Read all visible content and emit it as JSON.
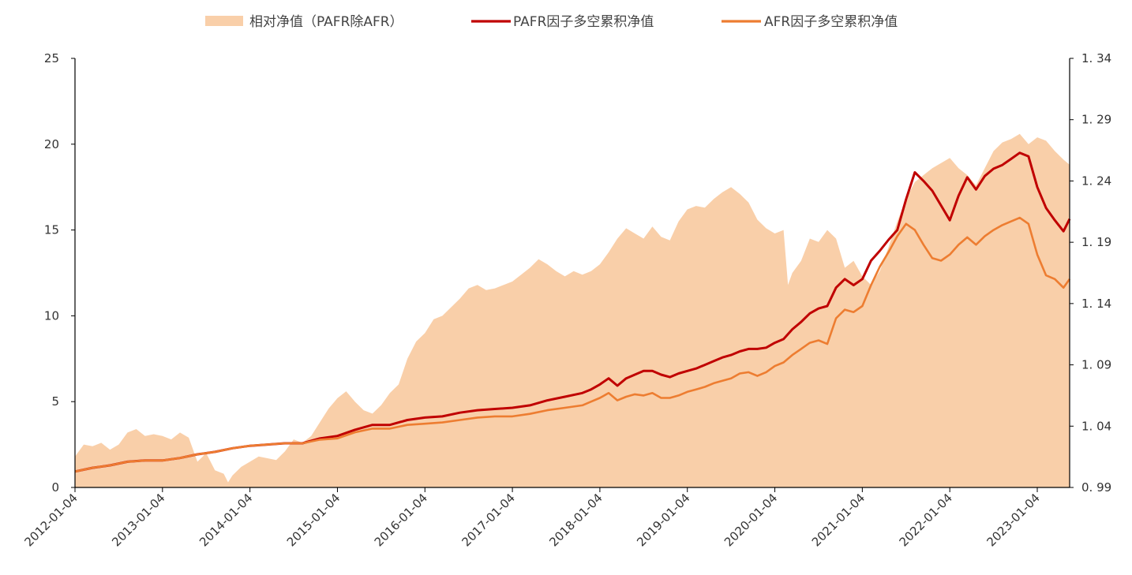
{
  "chart_data": {
    "type": "line",
    "legend_placement": "top-center",
    "grid": false,
    "legend": [
      {
        "key": "relative",
        "label": "相对净值（PAFR除AFR）",
        "style": "area"
      },
      {
        "key": "pafr",
        "label": "PAFR因子多空累积净值",
        "style": "line"
      },
      {
        "key": "afr",
        "label": "AFR因子多空累积净值",
        "style": "line"
      }
    ],
    "colors": {
      "relative": "#f9cfa9",
      "pafr": "#c00000",
      "afr": "#ed7d31",
      "axis": "#000000"
    },
    "x_tick_labels": [
      "2012-01-04",
      "2013-01-04",
      "2014-01-04",
      "2015-01-04",
      "2016-01-04",
      "2017-01-04",
      "2018-01-04",
      "2019-01-04",
      "2020-01-04",
      "2021-01-04",
      "2022-01-04",
      "2023-01-04"
    ],
    "x_range": [
      2012.0,
      2023.37
    ],
    "y_left": {
      "range": [
        0,
        25
      ],
      "ticks": [
        "0",
        "5",
        "10",
        "15",
        "20",
        "25"
      ]
    },
    "y_right": {
      "range": [
        0.99,
        1.34
      ],
      "ticks": [
        "0. 99",
        "1. 04",
        "1. 09",
        "1. 14",
        "1. 19",
        "1. 24",
        "1. 29",
        "1. 34"
      ]
    },
    "series": [
      {
        "key": "relative",
        "axis": "left",
        "x": [
          2012.0,
          2012.1,
          2012.2,
          2012.3,
          2012.4,
          2012.5,
          2012.6,
          2012.7,
          2012.8,
          2012.9,
          2013.0,
          2013.1,
          2013.2,
          2013.3,
          2013.4,
          2013.5,
          2013.6,
          2013.7,
          2013.75,
          2013.8,
          2013.9,
          2014.0,
          2014.1,
          2014.2,
          2014.3,
          2014.4,
          2014.5,
          2014.6,
          2014.7,
          2014.8,
          2014.9,
          2015.0,
          2015.1,
          2015.2,
          2015.3,
          2015.4,
          2015.5,
          2015.6,
          2015.7,
          2015.8,
          2015.9,
          2016.0,
          2016.1,
          2016.2,
          2016.3,
          2016.4,
          2016.5,
          2016.6,
          2016.7,
          2016.8,
          2016.9,
          2017.0,
          2017.1,
          2017.2,
          2017.3,
          2017.4,
          2017.5,
          2017.6,
          2017.7,
          2017.8,
          2017.9,
          2018.0,
          2018.1,
          2018.2,
          2018.3,
          2018.4,
          2018.5,
          2018.6,
          2018.7,
          2018.8,
          2018.9,
          2019.0,
          2019.1,
          2019.2,
          2019.3,
          2019.4,
          2019.5,
          2019.6,
          2019.7,
          2019.8,
          2019.9,
          2020.0,
          2020.1,
          2020.15,
          2020.2,
          2020.3,
          2020.4,
          2020.5,
          2020.6,
          2020.7,
          2020.8,
          2020.9,
          2021.0,
          2021.1,
          2021.2,
          2021.3,
          2021.4,
          2021.5,
          2021.6,
          2021.7,
          2021.8,
          2021.9,
          2022.0,
          2022.1,
          2022.2,
          2022.3,
          2022.4,
          2022.5,
          2022.6,
          2022.7,
          2022.8,
          2022.9,
          2023.0,
          2023.1,
          2023.2,
          2023.3,
          2023.37
        ],
        "values": [
          1.8,
          2.5,
          2.4,
          2.6,
          2.2,
          2.5,
          3.2,
          3.4,
          3.0,
          3.1,
          3.0,
          2.8,
          3.2,
          2.9,
          1.5,
          2.0,
          1.0,
          0.8,
          0.3,
          0.7,
          1.2,
          1.5,
          1.8,
          1.7,
          1.6,
          2.1,
          2.8,
          2.6,
          3.0,
          3.8,
          4.6,
          5.2,
          5.6,
          5.0,
          4.5,
          4.3,
          4.8,
          5.5,
          6.0,
          7.5,
          8.5,
          9.0,
          9.8,
          10.0,
          10.5,
          11.0,
          11.6,
          11.8,
          11.5,
          11.6,
          11.8,
          12.0,
          12.4,
          12.8,
          13.3,
          13.0,
          12.6,
          12.3,
          12.6,
          12.4,
          12.6,
          13.0,
          13.7,
          14.5,
          15.1,
          14.8,
          14.5,
          15.2,
          14.6,
          14.4,
          15.5,
          16.2,
          16.4,
          16.3,
          16.8,
          17.2,
          17.5,
          17.1,
          16.6,
          15.6,
          15.1,
          14.8,
          15.0,
          11.8,
          12.5,
          13.2,
          14.5,
          14.3,
          15.0,
          14.5,
          12.8,
          13.2,
          12.3,
          11.8,
          12.6,
          14.0,
          15.5,
          16.8,
          17.8,
          18.2,
          18.6,
          18.9,
          19.2,
          18.6,
          18.2,
          17.6,
          18.6,
          19.6,
          20.1,
          20.3,
          20.6,
          20.0,
          20.4,
          20.2,
          19.6,
          19.1,
          18.8
        ]
      },
      {
        "key": "pafr",
        "axis": "right",
        "x": [
          2012.0,
          2012.2,
          2012.4,
          2012.6,
          2012.8,
          2013.0,
          2013.2,
          2013.4,
          2013.6,
          2013.8,
          2014.0,
          2014.2,
          2014.4,
          2014.6,
          2014.8,
          2015.0,
          2015.2,
          2015.4,
          2015.6,
          2015.8,
          2016.0,
          2016.2,
          2016.4,
          2016.6,
          2016.8,
          2017.0,
          2017.2,
          2017.4,
          2017.6,
          2017.8,
          2017.9,
          2018.0,
          2018.1,
          2018.2,
          2018.3,
          2018.4,
          2018.5,
          2018.6,
          2018.7,
          2018.8,
          2018.9,
          2019.0,
          2019.1,
          2019.2,
          2019.3,
          2019.4,
          2019.5,
          2019.6,
          2019.7,
          2019.8,
          2019.9,
          2020.0,
          2020.1,
          2020.2,
          2020.3,
          2020.4,
          2020.5,
          2020.6,
          2020.7,
          2020.8,
          2020.9,
          2021.0,
          2021.1,
          2021.2,
          2021.3,
          2021.4,
          2021.5,
          2021.6,
          2021.7,
          2021.8,
          2021.9,
          2022.0,
          2022.1,
          2022.2,
          2022.3,
          2022.4,
          2022.5,
          2022.6,
          2022.7,
          2022.8,
          2022.9,
          2023.0,
          2023.1,
          2023.2,
          2023.3,
          2023.37
        ],
        "values": [
          1.003,
          1.006,
          1.008,
          1.011,
          1.012,
          1.012,
          1.014,
          1.017,
          1.019,
          1.022,
          1.024,
          1.025,
          1.026,
          1.026,
          1.03,
          1.032,
          1.037,
          1.041,
          1.041,
          1.045,
          1.047,
          1.048,
          1.051,
          1.053,
          1.054,
          1.055,
          1.057,
          1.061,
          1.064,
          1.067,
          1.07,
          1.074,
          1.079,
          1.073,
          1.079,
          1.082,
          1.085,
          1.085,
          1.082,
          1.08,
          1.083,
          1.085,
          1.087,
          1.09,
          1.093,
          1.096,
          1.098,
          1.101,
          1.103,
          1.103,
          1.104,
          1.108,
          1.111,
          1.119,
          1.125,
          1.132,
          1.136,
          1.138,
          1.153,
          1.16,
          1.155,
          1.16,
          1.175,
          1.183,
          1.192,
          1.2,
          1.225,
          1.247,
          1.24,
          1.232,
          1.22,
          1.208,
          1.228,
          1.243,
          1.233,
          1.244,
          1.25,
          1.253,
          1.258,
          1.263,
          1.26,
          1.235,
          1.218,
          1.208,
          1.199,
          1.209
        ]
      },
      {
        "key": "afr",
        "axis": "right",
        "x": [
          2012.0,
          2012.2,
          2012.4,
          2012.6,
          2012.8,
          2013.0,
          2013.2,
          2013.4,
          2013.6,
          2013.8,
          2014.0,
          2014.2,
          2014.4,
          2014.6,
          2014.8,
          2015.0,
          2015.2,
          2015.4,
          2015.6,
          2015.8,
          2016.0,
          2016.2,
          2016.4,
          2016.6,
          2016.8,
          2017.0,
          2017.2,
          2017.4,
          2017.6,
          2017.8,
          2017.9,
          2018.0,
          2018.1,
          2018.2,
          2018.3,
          2018.4,
          2018.5,
          2018.6,
          2018.7,
          2018.8,
          2018.9,
          2019.0,
          2019.1,
          2019.2,
          2019.3,
          2019.4,
          2019.5,
          2019.6,
          2019.7,
          2019.8,
          2019.9,
          2020.0,
          2020.1,
          2020.2,
          2020.3,
          2020.4,
          2020.5,
          2020.6,
          2020.7,
          2020.8,
          2020.9,
          2021.0,
          2021.1,
          2021.2,
          2021.3,
          2021.4,
          2021.5,
          2021.6,
          2021.7,
          2021.8,
          2021.9,
          2022.0,
          2022.1,
          2022.2,
          2022.3,
          2022.4,
          2022.5,
          2022.6,
          2022.7,
          2022.8,
          2022.9,
          2023.0,
          2023.1,
          2023.2,
          2023.3,
          2023.37
        ],
        "values": [
          1.003,
          1.006,
          1.008,
          1.011,
          1.012,
          1.012,
          1.014,
          1.017,
          1.019,
          1.022,
          1.024,
          1.025,
          1.026,
          1.026,
          1.029,
          1.03,
          1.035,
          1.038,
          1.038,
          1.041,
          1.042,
          1.043,
          1.045,
          1.047,
          1.048,
          1.048,
          1.05,
          1.053,
          1.055,
          1.057,
          1.06,
          1.063,
          1.067,
          1.061,
          1.064,
          1.066,
          1.065,
          1.067,
          1.063,
          1.063,
          1.065,
          1.068,
          1.07,
          1.072,
          1.075,
          1.077,
          1.079,
          1.083,
          1.084,
          1.081,
          1.084,
          1.089,
          1.092,
          1.098,
          1.103,
          1.108,
          1.11,
          1.107,
          1.128,
          1.135,
          1.133,
          1.138,
          1.155,
          1.17,
          1.182,
          1.195,
          1.205,
          1.2,
          1.188,
          1.177,
          1.175,
          1.18,
          1.188,
          1.194,
          1.188,
          1.195,
          1.2,
          1.204,
          1.207,
          1.21,
          1.205,
          1.18,
          1.163,
          1.16,
          1.153,
          1.16
        ]
      }
    ]
  }
}
